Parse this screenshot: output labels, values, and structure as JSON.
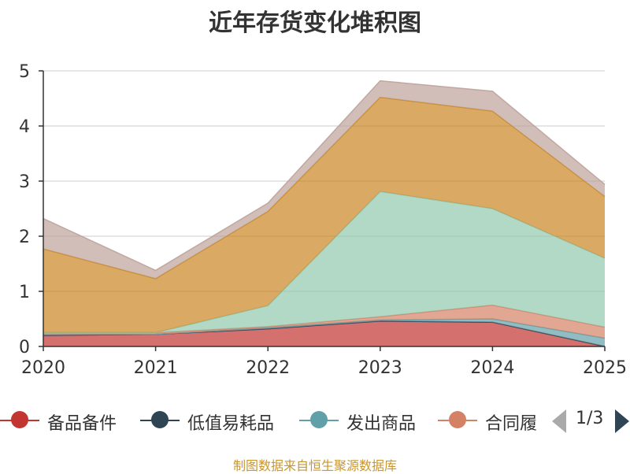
{
  "title": "近年存货变化堆积图",
  "footer": "制图数据来自恒生聚源数据库",
  "pager": {
    "text": "1/3"
  },
  "colors": {
    "备品备件": "#c23531",
    "低值易耗品": "#2f4554",
    "发出商品": "#61a0a8",
    "合同履约成本": "#d48265",
    "series5": "#91c7ae",
    "series6": "#ca8622",
    "series7": "#bda29a"
  },
  "chart_data": {
    "type": "area",
    "stacked": true,
    "title": "近年存货变化堆积图",
    "x": [
      "2020",
      "2021",
      "2022",
      "2023",
      "2024",
      "2025"
    ],
    "ylim": [
      0,
      5
    ],
    "yticks": [
      "0",
      "1",
      "2",
      "3",
      "4",
      "5"
    ],
    "grid": true,
    "legend_position": "bottom",
    "series": [
      {
        "name": "备品备件",
        "color": "#c23531",
        "values": [
          0.2,
          0.22,
          0.32,
          0.46,
          0.44,
          0.0
        ]
      },
      {
        "name": "低值易耗品",
        "color": "#2f4554",
        "values": [
          0.0,
          0.0,
          0.0,
          0.0,
          0.0,
          0.0
        ]
      },
      {
        "name": "发出商品",
        "color": "#61a0a8",
        "values": [
          0.02,
          0.0,
          0.02,
          0.02,
          0.06,
          0.15
        ]
      },
      {
        "name": "合同履约成本",
        "color": "#d48265",
        "values": [
          0.03,
          0.03,
          0.02,
          0.06,
          0.25,
          0.2
        ]
      },
      {
        "color": "#91c7ae",
        "values": [
          0.0,
          0.0,
          0.38,
          2.27,
          1.75,
          1.25
        ]
      },
      {
        "color": "#ca8622",
        "values": [
          1.52,
          0.98,
          1.71,
          1.71,
          1.77,
          1.12
        ]
      },
      {
        "color": "#bda29a",
        "values": [
          0.55,
          0.15,
          0.15,
          0.3,
          0.36,
          0.22
        ]
      }
    ],
    "legend": [
      "备品备件",
      "低值易耗品",
      "发出商品",
      "合同履"
    ]
  }
}
